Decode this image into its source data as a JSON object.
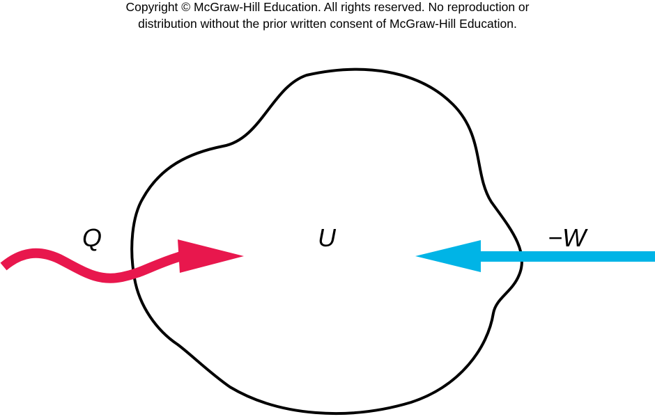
{
  "copyright": {
    "line1": "Copyright © McGraw-Hill Education.  All rights reserved. No reproduction or",
    "line2": "distribution without the prior written consent of McGraw-Hill Education."
  },
  "diagram": {
    "heat_label": "Q",
    "energy_label": "U",
    "work_label": "−W"
  },
  "colors": {
    "heat_arrow": "#e8174d",
    "work_arrow": "#00b4e6",
    "outline": "#000000"
  }
}
